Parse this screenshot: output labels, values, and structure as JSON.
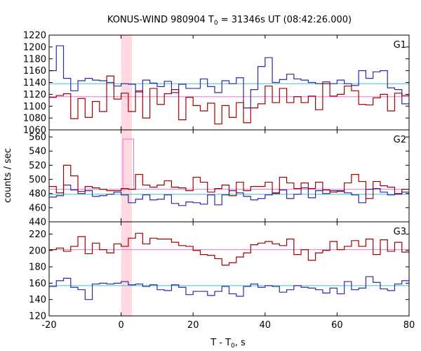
{
  "chart_data": {
    "type": "line",
    "title_main": "KONUS-WIND 980904 T",
    "title_sub": "0",
    "title_rest": " = 31346s UT (08:42:26.000)",
    "xlabel_main": "T - T",
    "xlabel_sub": "0",
    "xlabel_rest": ", s",
    "ylabel": "counts / sec",
    "xlim": [
      -20,
      80
    ],
    "x_ticks": [
      -20,
      0,
      20,
      40,
      60,
      80
    ],
    "highlight_interval": [
      0,
      3
    ],
    "colors": {
      "red": "#a00000",
      "blue": "#2a2aaa",
      "pink": "#f070d0",
      "cyan": "#40c0d0",
      "highlight": "#ffd9df"
    },
    "x": [
      -20,
      -18,
      -16,
      -14,
      -12,
      -10,
      -8,
      -6,
      -4,
      -2,
      0,
      2,
      4,
      6,
      8,
      10,
      12,
      14,
      16,
      18,
      20,
      22,
      24,
      26,
      28,
      30,
      32,
      34,
      36,
      38,
      40,
      42,
      44,
      46,
      48,
      50,
      52,
      54,
      56,
      58,
      60,
      62,
      64,
      66,
      68,
      70,
      72,
      74,
      76,
      78
    ],
    "panels": [
      {
        "label": "G1",
        "ylim": [
          1060,
          1220
        ],
        "y_ticks": [
          1060,
          1080,
          1100,
          1120,
          1140,
          1160,
          1180,
          1200,
          1220
        ],
        "red_values": [
          1115,
          1118,
          1121,
          1079,
          1113,
          1081,
          1108,
          1091,
          1151,
          1112,
          1122,
          1091,
          1126,
          1080,
          1130,
          1103,
          1121,
          1128,
          1077,
          1115,
          1101,
          1092,
          1105,
          1070,
          1101,
          1081,
          1106,
          1072,
          1097,
          1104,
          1134,
          1106,
          1130,
          1106,
          1116,
          1106,
          1117,
          1094,
          1138,
          1117,
          1120,
          1134,
          1126,
          1103,
          1102,
          1114,
          1120,
          1092,
          1122,
          1118
        ],
        "blue_values": [
          1160,
          1202,
          1147,
          1126,
          1143,
          1147,
          1144,
          1143,
          1140,
          1134,
          1138,
          1137,
          1124,
          1144,
          1139,
          1133,
          1142,
          1123,
          1137,
          1130,
          1130,
          1146,
          1133,
          1123,
          1143,
          1138,
          1148,
          1097,
          1128,
          1167,
          1182,
          1140,
          1145,
          1154,
          1146,
          1144,
          1140,
          1138,
          1141,
          1138,
          1144,
          1138,
          1135,
          1160,
          1147,
          1158,
          1160,
          1131,
          1128,
          1104
        ],
        "pink_level": 1116,
        "cyan_level": 1138
      },
      {
        "label": "G2",
        "ylim": [
          440,
          570
        ],
        "y_ticks": [
          440,
          460,
          480,
          500,
          520,
          540,
          560
        ],
        "red_values": [
          490,
          481,
          520,
          505,
          483,
          490,
          488,
          486,
          484,
          484,
          487,
          486,
          507,
          492,
          489,
          492,
          498,
          489,
          488,
          484,
          503,
          496,
          482,
          487,
          492,
          477,
          496,
          484,
          490,
          490,
          496,
          480,
          503,
          495,
          487,
          495,
          487,
          496,
          485,
          482,
          483,
          495,
          507,
          497,
          473,
          497,
          491,
          489,
          480,
          486
        ],
        "blue_values": [
          475,
          477,
          492,
          485,
          480,
          484,
          476,
          477,
          479,
          482,
          478,
          467,
          472,
          478,
          471,
          472,
          478,
          466,
          463,
          468,
          467,
          465,
          478,
          464,
          478,
          484,
          481,
          476,
          471,
          473,
          478,
          481,
          485,
          473,
          479,
          488,
          474,
          484,
          480,
          484,
          484,
          481,
          478,
          467,
          486,
          487,
          482,
          478,
          479,
          482
        ],
        "pink_level": 486,
        "cyan_level": 479,
        "spike": {
          "x0": 0.5,
          "x1": 3.5,
          "value": 557
        }
      },
      {
        "label": "G3",
        "ylim": [
          120,
          235
        ],
        "y_ticks": [
          120,
          140,
          160,
          180,
          200,
          220
        ],
        "red_values": [
          201,
          203,
          199,
          205,
          217,
          196,
          209,
          201,
          197,
          208,
          205,
          215,
          221,
          208,
          215,
          214,
          214,
          210,
          206,
          205,
          200,
          195,
          194,
          190,
          182,
          185,
          192,
          197,
          207,
          209,
          211,
          208,
          206,
          214,
          195,
          201,
          188,
          197,
          200,
          211,
          201,
          205,
          212,
          205,
          214,
          195,
          213,
          199,
          210,
          198
        ],
        "blue_values": [
          156,
          163,
          166,
          155,
          152,
          140,
          159,
          160,
          159,
          160,
          162,
          158,
          159,
          156,
          158,
          152,
          151,
          158,
          155,
          146,
          150,
          150,
          145,
          150,
          156,
          147,
          144,
          156,
          159,
          155,
          157,
          156,
          149,
          152,
          157,
          155,
          154,
          152,
          148,
          154,
          147,
          162,
          152,
          154,
          168,
          161,
          153,
          151,
          159,
          163
        ],
        "pink_level": 201,
        "cyan_level": 157
      }
    ]
  }
}
